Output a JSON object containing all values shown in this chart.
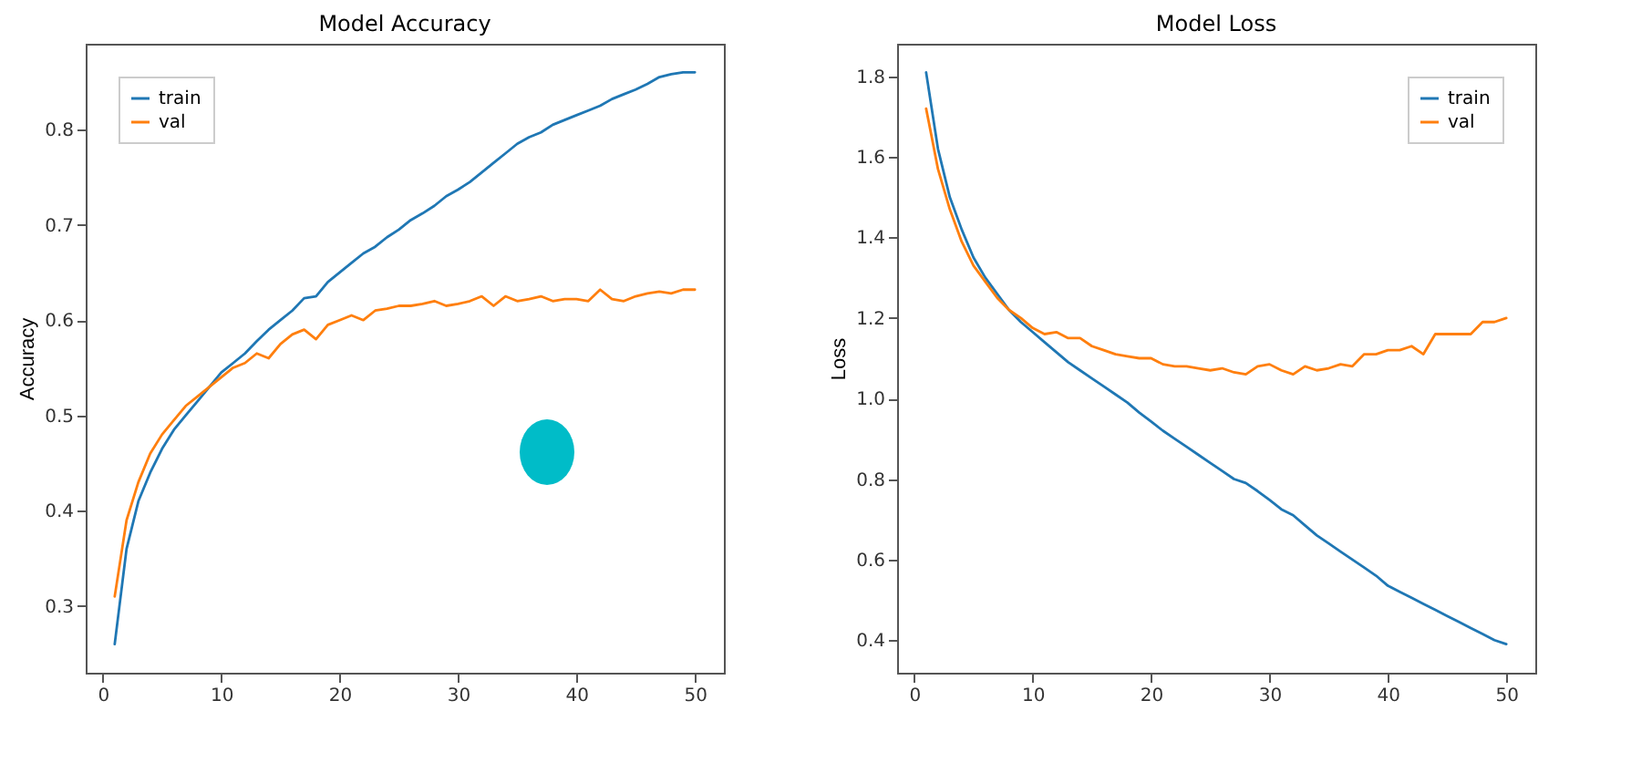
{
  "chart_data": [
    {
      "type": "line",
      "title": "Model Accuracy",
      "ylabel": "Accuracy",
      "x": [
        1,
        2,
        3,
        4,
        5,
        6,
        7,
        8,
        9,
        10,
        11,
        12,
        13,
        14,
        15,
        16,
        17,
        18,
        19,
        20,
        21,
        22,
        23,
        24,
        25,
        26,
        27,
        28,
        29,
        30,
        31,
        32,
        33,
        34,
        35,
        36,
        37,
        38,
        39,
        40,
        41,
        42,
        43,
        44,
        45,
        46,
        47,
        48,
        49,
        50
      ],
      "xlim": [
        -1.45,
        52.45
      ],
      "xticks": [
        0,
        10,
        20,
        30,
        40,
        50
      ],
      "ylim": [
        0.23,
        0.89
      ],
      "yticks": [
        0.3,
        0.4,
        0.5,
        0.6,
        0.7,
        0.8
      ],
      "legend": "top left",
      "series": [
        {
          "name": "train",
          "color": "#1f77b4",
          "values": [
            0.26,
            0.36,
            0.41,
            0.44,
            0.465,
            0.485,
            0.5,
            0.515,
            0.53,
            0.545,
            0.555,
            0.565,
            0.578,
            0.59,
            0.6,
            0.61,
            0.623,
            0.625,
            0.64,
            0.65,
            0.66,
            0.67,
            0.677,
            0.687,
            0.695,
            0.705,
            0.712,
            0.72,
            0.73,
            0.737,
            0.745,
            0.755,
            0.765,
            0.775,
            0.785,
            0.792,
            0.797,
            0.805,
            0.81,
            0.815,
            0.82,
            0.825,
            0.832,
            0.837,
            0.842,
            0.848,
            0.855,
            0.858,
            0.86,
            0.86
          ]
        },
        {
          "name": "val",
          "color": "#ff7f0e",
          "values": [
            0.31,
            0.39,
            0.43,
            0.46,
            0.48,
            0.495,
            0.51,
            0.52,
            0.53,
            0.54,
            0.55,
            0.555,
            0.565,
            0.56,
            0.575,
            0.585,
            0.59,
            0.58,
            0.595,
            0.6,
            0.605,
            0.6,
            0.61,
            0.612,
            0.615,
            0.615,
            0.617,
            0.62,
            0.615,
            0.617,
            0.62,
            0.625,
            0.615,
            0.625,
            0.62,
            0.622,
            0.625,
            0.62,
            0.622,
            0.622,
            0.62,
            0.632,
            0.622,
            0.62,
            0.625,
            0.628,
            0.63,
            0.628,
            0.632,
            0.632
          ]
        }
      ]
    },
    {
      "type": "line",
      "title": "Model Loss",
      "ylabel": "Loss",
      "x": [
        1,
        2,
        3,
        4,
        5,
        6,
        7,
        8,
        9,
        10,
        11,
        12,
        13,
        14,
        15,
        16,
        17,
        18,
        19,
        20,
        21,
        22,
        23,
        24,
        25,
        26,
        27,
        28,
        29,
        30,
        31,
        32,
        33,
        34,
        35,
        36,
        37,
        38,
        39,
        40,
        41,
        42,
        43,
        44,
        45,
        46,
        47,
        48,
        49,
        50
      ],
      "xlim": [
        -1.45,
        52.45
      ],
      "xticks": [
        0,
        10,
        20,
        30,
        40,
        50
      ],
      "ylim": [
        0.319,
        1.881
      ],
      "yticks": [
        0.4,
        0.6,
        0.8,
        {
          "value": 1,
          "label": "1.0"
        },
        1.2,
        1.4,
        1.6,
        1.8
      ],
      "legend": "top right",
      "series": [
        {
          "name": "train",
          "color": "#1f77b4",
          "values": [
            1.81,
            1.62,
            1.5,
            1.42,
            1.35,
            1.3,
            1.26,
            1.22,
            1.19,
            1.165,
            1.14,
            1.115,
            1.09,
            1.07,
            1.05,
            1.03,
            1.01,
            0.99,
            0.965,
            0.943,
            0.92,
            0.9,
            0.88,
            0.86,
            0.84,
            0.82,
            0.8,
            0.79,
            0.77,
            0.748,
            0.725,
            0.71,
            0.685,
            0.66,
            0.64,
            0.62,
            0.6,
            0.58,
            0.56,
            0.535,
            0.52,
            0.505,
            0.49,
            0.475,
            0.46,
            0.445,
            0.43,
            0.415,
            0.4,
            0.39
          ]
        },
        {
          "name": "val",
          "color": "#ff7f0e",
          "values": [
            1.72,
            1.57,
            1.47,
            1.39,
            1.33,
            1.29,
            1.25,
            1.22,
            1.2,
            1.175,
            1.16,
            1.165,
            1.15,
            1.15,
            1.13,
            1.12,
            1.11,
            1.105,
            1.1,
            1.1,
            1.085,
            1.08,
            1.08,
            1.075,
            1.07,
            1.075,
            1.065,
            1.06,
            1.08,
            1.085,
            1.07,
            1.06,
            1.08,
            1.07,
            1.075,
            1.085,
            1.08,
            1.11,
            1.11,
            1.12,
            1.12,
            1.13,
            1.11,
            1.16,
            1.16,
            1.16,
            1.16,
            1.19,
            1.19,
            1.2
          ]
        }
      ]
    }
  ]
}
